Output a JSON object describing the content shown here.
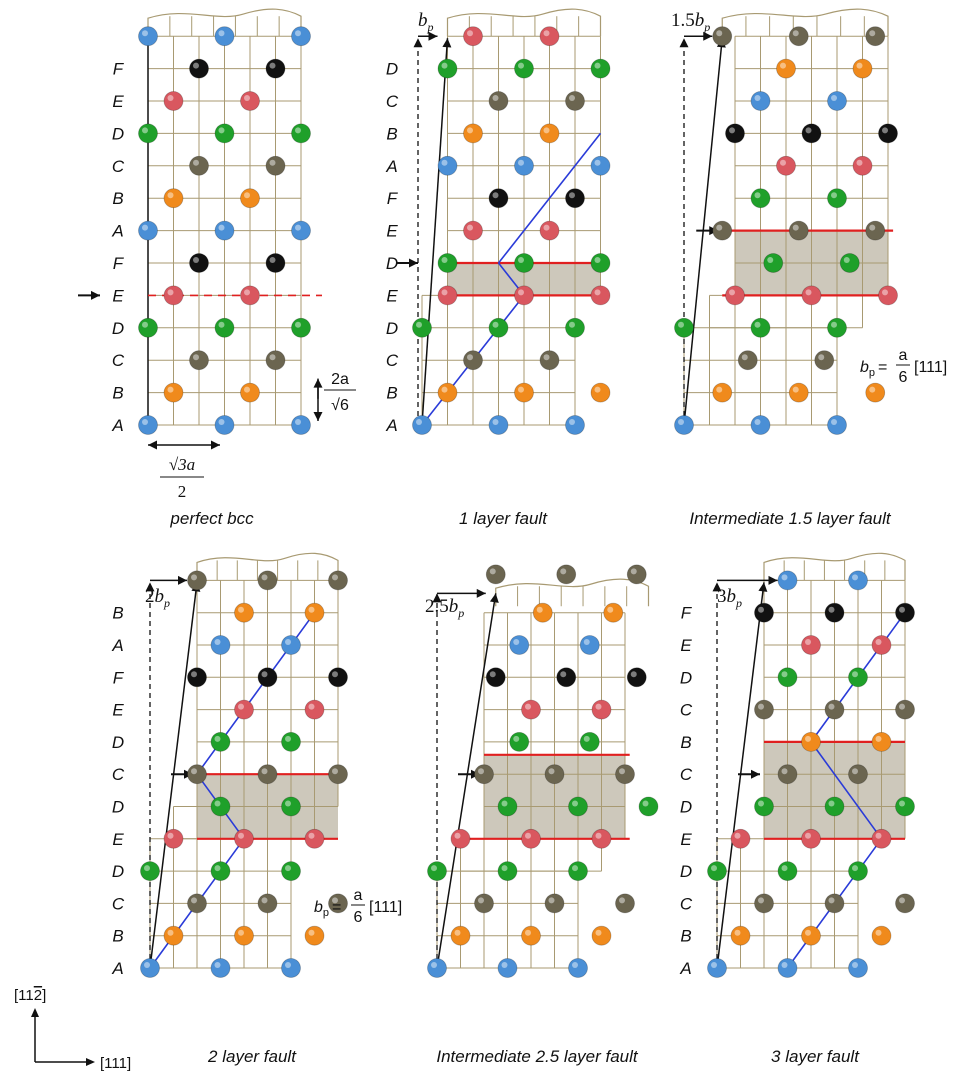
{
  "palette": {
    "A": "#4a8fd6",
    "B": "#f08a1c",
    "C": "#6b6550",
    "D": "#1fa02a",
    "E": "#d9575f",
    "F": "#111111",
    "grid": "#a89a72",
    "fault_line": "#e02020",
    "fault_fill": "#cdc8bb",
    "diag": "#2a3bd8"
  },
  "panels": [
    {
      "id": "perfect",
      "caption": "perfect bcc",
      "seq": [
        "A",
        "B",
        "C",
        "D",
        "E",
        "F",
        "A",
        "B",
        "C",
        "D",
        "E",
        "F",
        "A"
      ],
      "labels": [
        "A",
        "B",
        "C",
        "D",
        "E",
        "F",
        "A",
        "B",
        "C",
        "D",
        "E",
        "F"
      ],
      "slip_label": ""
    },
    {
      "id": "one",
      "caption": "1 layer fault",
      "seq": [
        "A",
        "B",
        "C",
        "D",
        "E",
        "D",
        "E",
        "F",
        "A",
        "B",
        "C",
        "D",
        "E"
      ],
      "labels": [
        "A",
        "B",
        "C",
        "D",
        "E",
        "D",
        "E",
        "F",
        "A",
        "B",
        "C",
        "D"
      ],
      "slip_label": "b",
      "slip_pre": ""
    },
    {
      "id": "onehalf",
      "caption": "Intermediate 1.5 layer fault",
      "seq": [],
      "labels": [],
      "slip_label": "b",
      "slip_pre": "1.5"
    },
    {
      "id": "two",
      "caption": "2 layer fault",
      "seq": [
        "A",
        "B",
        "C",
        "D",
        "E",
        "D",
        "C",
        "D",
        "E",
        "F",
        "A",
        "B",
        "C"
      ],
      "labels": [
        "A",
        "B",
        "C",
        "D",
        "E",
        "D",
        "C",
        "D",
        "E",
        "F",
        "A",
        "B"
      ],
      "slip_label": "b",
      "slip_pre": "2"
    },
    {
      "id": "twohalf",
      "caption": "Intermediate 2.5 layer fault",
      "seq": [],
      "labels": [],
      "slip_label": "b",
      "slip_pre": "2.5"
    },
    {
      "id": "three",
      "caption": "3 layer fault",
      "seq": [
        "A",
        "B",
        "C",
        "D",
        "E",
        "D",
        "C",
        "B",
        "C",
        "D",
        "E",
        "F",
        "A"
      ],
      "labels": [
        "A",
        "B",
        "C",
        "D",
        "E",
        "D",
        "C",
        "B",
        "C",
        "D",
        "E",
        "F"
      ],
      "slip_label": "b",
      "slip_pre": "3"
    }
  ],
  "dim_vertical": {
    "num": "2a",
    "den": "√6"
  },
  "dim_horizontal": {
    "num": "√3a",
    "den": "2"
  },
  "bp_formula": {
    "lhs": "b",
    "sub": "p",
    "eq": "=",
    "num": "a",
    "den": "6",
    "vec": "[111]"
  },
  "bp_subscript": "p",
  "axes": {
    "up": "[11",
    "bar": "2",
    "up_close": "]",
    "right": "[111]"
  }
}
